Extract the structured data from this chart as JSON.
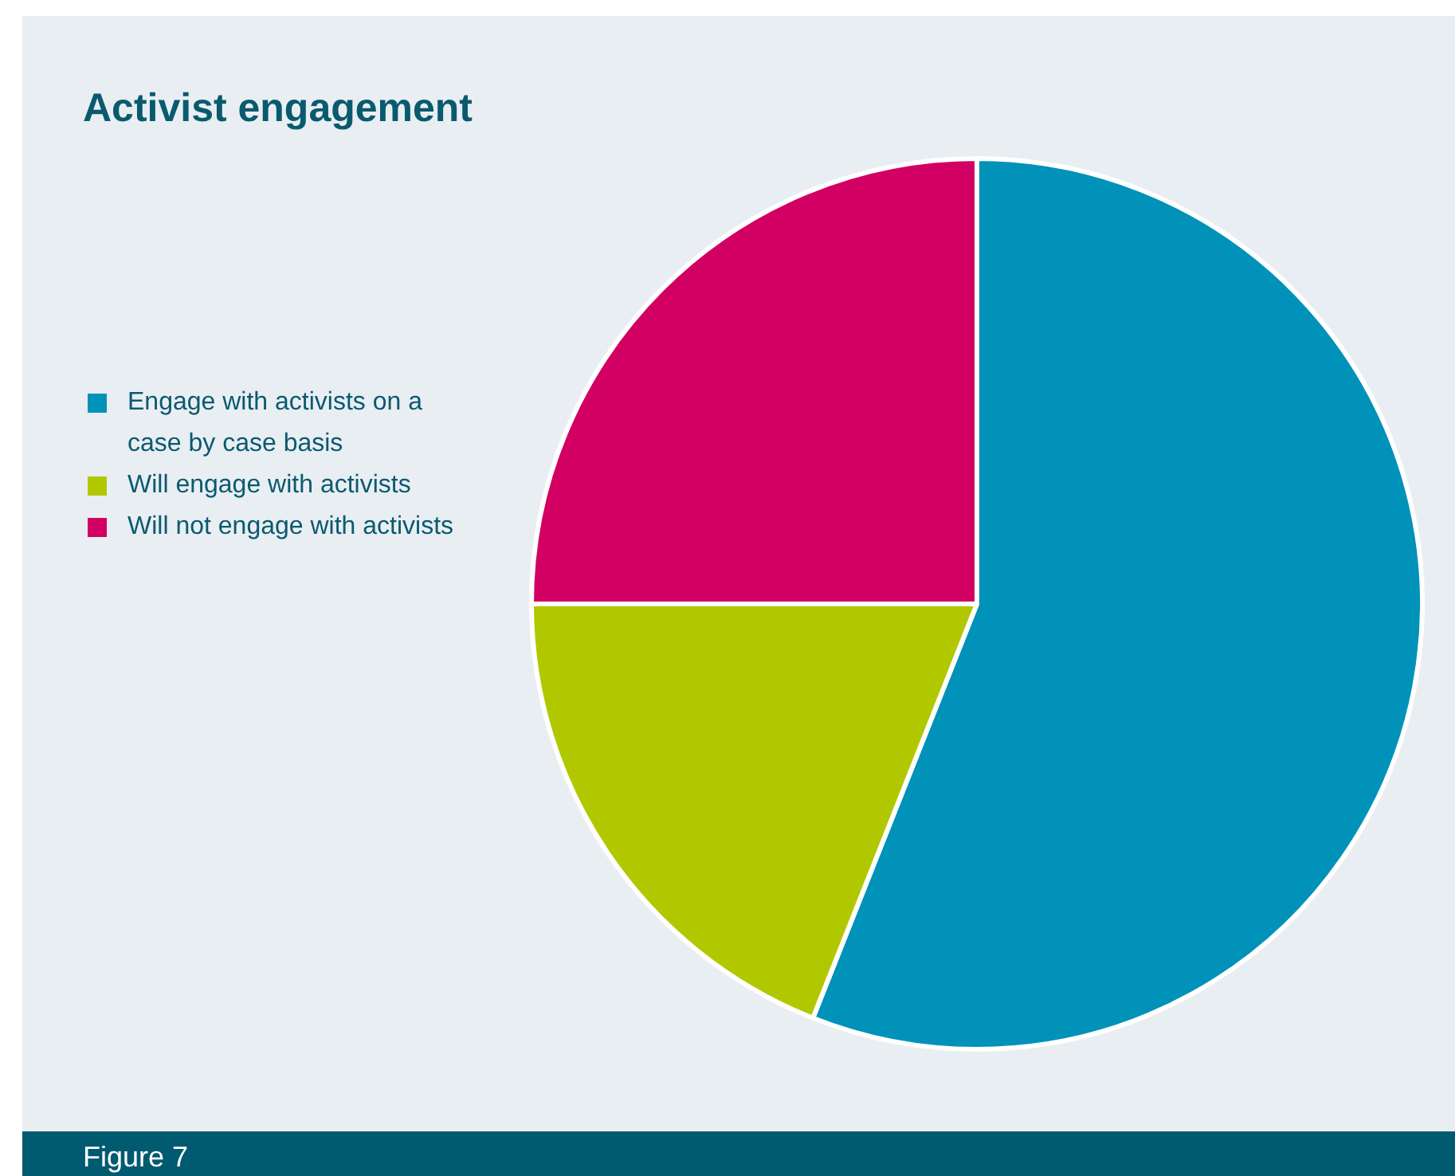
{
  "chart_data": {
    "type": "pie",
    "title": "Activist engagement",
    "categories": [
      "Engage with activists on a case by case basis",
      "Will engage with activists",
      "Will not engage with activists"
    ],
    "values": [
      56,
      19,
      25
    ],
    "colors": [
      "#0092b8",
      "#b1c800",
      "#d20063"
    ],
    "legend": "left",
    "annotations": [
      "Figure 7"
    ]
  }
}
